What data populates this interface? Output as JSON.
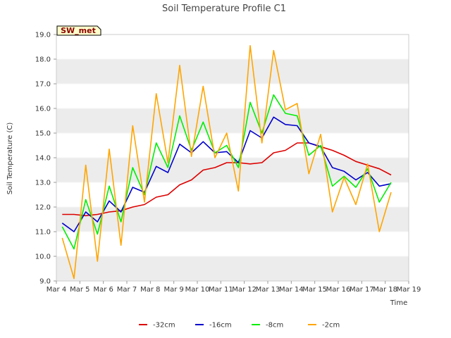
{
  "chart_data": {
    "type": "line",
    "title": "Soil Temperature Profile C1",
    "xlabel": "Time",
    "ylabel": "Soil Temperature (C)",
    "annotation": "SW_met",
    "x_ticks": [
      "Mar 4",
      "Mar 5",
      "Mar 6",
      "Mar 7",
      "Mar 8",
      "Mar 9",
      "Mar 10",
      "Mar 11",
      "Mar 12",
      "Mar 13",
      "Mar 14",
      "Mar 15",
      "Mar 16",
      "Mar 17",
      "Mar 18",
      "Mar 19"
    ],
    "y_ticks": [
      "9.0",
      "10.0",
      "11.0",
      "12.0",
      "13.0",
      "14.0",
      "15.0",
      "16.0",
      "17.0",
      "18.0",
      "19.0"
    ],
    "xlim": [
      "2024-03-04",
      "2024-03-19"
    ],
    "ylim": [
      9.0,
      19.0
    ],
    "grid": "horizontal bands",
    "legend_position": "bottom",
    "series": [
      {
        "name": "-32cm",
        "color": "#dd0000",
        "x": [
          "2024-03-04T06:00",
          "2024-03-04T18:00",
          "2024-03-05T06:00",
          "2024-03-05T18:00",
          "2024-03-06T06:00",
          "2024-03-06T18:00",
          "2024-03-07T06:00",
          "2024-03-07T18:00",
          "2024-03-08T06:00",
          "2024-03-08T18:00",
          "2024-03-09T06:00",
          "2024-03-09T18:00",
          "2024-03-10T06:00",
          "2024-03-10T18:00",
          "2024-03-11T06:00",
          "2024-03-11T18:00",
          "2024-03-12T06:00",
          "2024-03-12T18:00",
          "2024-03-13T06:00",
          "2024-03-13T18:00",
          "2024-03-14T06:00",
          "2024-03-14T18:00",
          "2024-03-15T06:00",
          "2024-03-15T18:00",
          "2024-03-16T06:00",
          "2024-03-16T18:00",
          "2024-03-17T06:00",
          "2024-03-17T18:00",
          "2024-03-18T06:00"
        ],
        "values": [
          11.7,
          11.7,
          11.65,
          11.7,
          11.8,
          11.85,
          12.0,
          12.1,
          12.4,
          12.5,
          12.9,
          13.1,
          13.5,
          13.6,
          13.8,
          13.8,
          13.75,
          13.8,
          14.2,
          14.3,
          14.6,
          14.6,
          14.45,
          14.3,
          14.1,
          13.85,
          13.7,
          13.55,
          13.3
        ]
      },
      {
        "name": "-16cm",
        "color": "#0000cc",
        "x": [
          "2024-03-04T06:00",
          "2024-03-04T18:00",
          "2024-03-05T06:00",
          "2024-03-05T18:00",
          "2024-03-06T06:00",
          "2024-03-06T18:00",
          "2024-03-07T06:00",
          "2024-03-07T18:00",
          "2024-03-08T06:00",
          "2024-03-08T18:00",
          "2024-03-09T06:00",
          "2024-03-09T18:00",
          "2024-03-10T06:00",
          "2024-03-10T18:00",
          "2024-03-11T06:00",
          "2024-03-11T18:00",
          "2024-03-12T06:00",
          "2024-03-12T18:00",
          "2024-03-13T06:00",
          "2024-03-13T18:00",
          "2024-03-14T06:00",
          "2024-03-14T18:00",
          "2024-03-15T06:00",
          "2024-03-15T18:00",
          "2024-03-16T06:00",
          "2024-03-16T18:00",
          "2024-03-17T06:00",
          "2024-03-17T18:00",
          "2024-03-18T06:00"
        ],
        "values": [
          11.35,
          11.0,
          11.8,
          11.4,
          12.25,
          11.8,
          12.8,
          12.6,
          13.65,
          13.4,
          14.55,
          14.2,
          14.65,
          14.2,
          14.25,
          13.8,
          15.1,
          14.8,
          15.65,
          15.35,
          15.3,
          14.6,
          14.45,
          13.6,
          13.45,
          13.1,
          13.4,
          12.85,
          12.95
        ]
      },
      {
        "name": "-8cm",
        "color": "#00ee00",
        "x": [
          "2024-03-04T06:00",
          "2024-03-04T18:00",
          "2024-03-05T06:00",
          "2024-03-05T18:00",
          "2024-03-06T06:00",
          "2024-03-06T18:00",
          "2024-03-07T06:00",
          "2024-03-07T18:00",
          "2024-03-08T06:00",
          "2024-03-08T18:00",
          "2024-03-09T06:00",
          "2024-03-09T18:00",
          "2024-03-10T06:00",
          "2024-03-10T18:00",
          "2024-03-11T06:00",
          "2024-03-11T18:00",
          "2024-03-12T06:00",
          "2024-03-12T18:00",
          "2024-03-13T06:00",
          "2024-03-13T18:00",
          "2024-03-14T06:00",
          "2024-03-14T18:00",
          "2024-03-15T06:00",
          "2024-03-15T18:00",
          "2024-03-16T06:00",
          "2024-03-16T18:00",
          "2024-03-17T06:00",
          "2024-03-17T18:00",
          "2024-03-18T06:00"
        ],
        "values": [
          11.2,
          10.3,
          12.3,
          10.9,
          12.85,
          11.4,
          13.6,
          12.5,
          14.6,
          13.6,
          15.7,
          14.3,
          15.45,
          14.2,
          14.5,
          13.6,
          16.25,
          15.0,
          16.55,
          15.8,
          15.7,
          14.1,
          14.5,
          12.85,
          13.25,
          12.8,
          13.55,
          12.2,
          13.0
        ]
      },
      {
        "name": "-2cm",
        "color": "#ffa500",
        "x": [
          "2024-03-04T06:00",
          "2024-03-04T18:00",
          "2024-03-05T06:00",
          "2024-03-05T18:00",
          "2024-03-06T06:00",
          "2024-03-06T18:00",
          "2024-03-07T06:00",
          "2024-03-07T18:00",
          "2024-03-08T06:00",
          "2024-03-08T18:00",
          "2024-03-09T06:00",
          "2024-03-09T18:00",
          "2024-03-10T06:00",
          "2024-03-10T18:00",
          "2024-03-11T06:00",
          "2024-03-11T18:00",
          "2024-03-12T06:00",
          "2024-03-12T18:00",
          "2024-03-13T06:00",
          "2024-03-13T18:00",
          "2024-03-14T06:00",
          "2024-03-14T18:00",
          "2024-03-15T06:00",
          "2024-03-15T18:00",
          "2024-03-16T06:00",
          "2024-03-16T18:00",
          "2024-03-17T06:00",
          "2024-03-17T18:00",
          "2024-03-18T06:00"
        ],
        "values": [
          10.75,
          9.1,
          13.7,
          9.8,
          14.35,
          10.45,
          15.3,
          12.2,
          16.6,
          13.8,
          17.75,
          14.05,
          16.9,
          14.0,
          15.0,
          12.65,
          18.55,
          14.6,
          18.35,
          15.95,
          16.2,
          13.35,
          14.95,
          11.8,
          13.2,
          12.1,
          13.75,
          11.0,
          12.6
        ]
      }
    ]
  }
}
